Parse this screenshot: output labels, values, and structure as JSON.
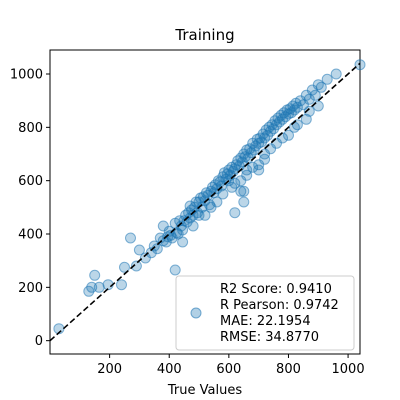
{
  "chart_data": {
    "type": "scatter",
    "title": "Training",
    "xlabel": "True Values",
    "ylabel": "",
    "xlim": [
      0,
      1040
    ],
    "ylim": [
      -50,
      1090
    ],
    "xticks": [
      200,
      400,
      600,
      800,
      1000
    ],
    "yticks": [
      0,
      200,
      400,
      600,
      800,
      1000
    ],
    "grid": false,
    "legend_position": "lower-right",
    "legend": {
      "lines": [
        "R2 Score: 0.9410",
        "R Pearson: 0.9742",
        "MAE: 22.1954",
        "RMSE: 34.8770"
      ]
    },
    "marker_color": "#1f77b4",
    "reference_line": {
      "style": "dashed",
      "color": "#000000",
      "slope": 1,
      "intercept": 0
    },
    "series": [
      {
        "values_xy": [
          [
            30,
            45
          ],
          [
            130,
            185
          ],
          [
            140,
            200
          ],
          [
            150,
            245
          ],
          [
            165,
            200
          ],
          [
            195,
            210
          ],
          [
            250,
            275
          ],
          [
            270,
            385
          ],
          [
            290,
            280
          ],
          [
            320,
            310
          ],
          [
            340,
            330
          ],
          [
            350,
            355
          ],
          [
            360,
            345
          ],
          [
            370,
            385
          ],
          [
            380,
            375
          ],
          [
            390,
            370
          ],
          [
            395,
            390
          ],
          [
            400,
            410
          ],
          [
            405,
            395
          ],
          [
            410,
            385
          ],
          [
            420,
            440
          ],
          [
            425,
            405
          ],
          [
            430,
            400
          ],
          [
            435,
            450
          ],
          [
            440,
            430
          ],
          [
            445,
            415
          ],
          [
            450,
            450
          ],
          [
            455,
            470
          ],
          [
            460,
            445
          ],
          [
            465,
            480
          ],
          [
            470,
            460
          ],
          [
            470,
            505
          ],
          [
            475,
            490
          ],
          [
            480,
            470
          ],
          [
            485,
            500
          ],
          [
            490,
            520
          ],
          [
            495,
            480
          ],
          [
            500,
            520
          ],
          [
            505,
            535
          ],
          [
            510,
            500
          ],
          [
            515,
            540
          ],
          [
            520,
            525
          ],
          [
            525,
            555
          ],
          [
            530,
            545
          ],
          [
            535,
            510
          ],
          [
            540,
            560
          ],
          [
            545,
            575
          ],
          [
            550,
            555
          ],
          [
            555,
            585
          ],
          [
            560,
            570
          ],
          [
            565,
            600
          ],
          [
            570,
            595
          ],
          [
            575,
            580
          ],
          [
            580,
            615
          ],
          [
            585,
            630
          ],
          [
            590,
            605
          ],
          [
            595,
            625
          ],
          [
            600,
            640
          ],
          [
            600,
            600
          ],
          [
            605,
            620
          ],
          [
            610,
            650
          ],
          [
            615,
            635
          ],
          [
            620,
            645
          ],
          [
            625,
            660
          ],
          [
            630,
            675
          ],
          [
            635,
            655
          ],
          [
            640,
            685
          ],
          [
            645,
            670
          ],
          [
            650,
            700
          ],
          [
            650,
            560
          ],
          [
            655,
            690
          ],
          [
            660,
            715
          ],
          [
            665,
            685
          ],
          [
            670,
            720
          ],
          [
            675,
            705
          ],
          [
            680,
            740
          ],
          [
            685,
            715
          ],
          [
            690,
            730
          ],
          [
            695,
            755
          ],
          [
            700,
            740
          ],
          [
            705,
            760
          ],
          [
            710,
            745
          ],
          [
            715,
            775
          ],
          [
            720,
            760
          ],
          [
            725,
            790
          ],
          [
            730,
            770
          ],
          [
            735,
            800
          ],
          [
            740,
            785
          ],
          [
            745,
            810
          ],
          [
            750,
            795
          ],
          [
            755,
            825
          ],
          [
            760,
            810
          ],
          [
            765,
            835
          ],
          [
            770,
            820
          ],
          [
            775,
            845
          ],
          [
            780,
            830
          ],
          [
            785,
            855
          ],
          [
            790,
            840
          ],
          [
            795,
            865
          ],
          [
            800,
            850
          ],
          [
            805,
            870
          ],
          [
            810,
            855
          ],
          [
            815,
            880
          ],
          [
            820,
            865
          ],
          [
            825,
            890
          ],
          [
            830,
            875
          ],
          [
            840,
            900
          ],
          [
            850,
            885
          ],
          [
            860,
            920
          ],
          [
            870,
            905
          ],
          [
            880,
            940
          ],
          [
            890,
            920
          ],
          [
            900,
            960
          ],
          [
            910,
            950
          ],
          [
            930,
            980
          ],
          [
            960,
            1000
          ],
          [
            1040,
            1035
          ],
          [
            380,
            430
          ],
          [
            445,
            370
          ],
          [
            480,
            430
          ],
          [
            520,
            470
          ],
          [
            560,
            520
          ],
          [
            610,
            575
          ],
          [
            640,
            600
          ],
          [
            660,
            640
          ],
          [
            700,
            660
          ],
          [
            720,
            700
          ],
          [
            760,
            740
          ],
          [
            800,
            770
          ],
          [
            830,
            810
          ],
          [
            870,
            860
          ],
          [
            620,
            480
          ],
          [
            640,
            560
          ],
          [
            650,
            520
          ],
          [
            660,
            620
          ],
          [
            700,
            640
          ],
          [
            240,
            210
          ],
          [
            420,
            265
          ],
          [
            300,
            340
          ],
          [
            500,
            470
          ],
          [
            540,
            500
          ],
          [
            580,
            550
          ],
          [
            620,
            590
          ],
          [
            680,
            650
          ],
          [
            720,
            680
          ],
          [
            740,
            720
          ],
          [
            780,
            760
          ],
          [
            820,
            800
          ],
          [
            860,
            830
          ],
          [
            900,
            880
          ]
        ]
      }
    ]
  }
}
